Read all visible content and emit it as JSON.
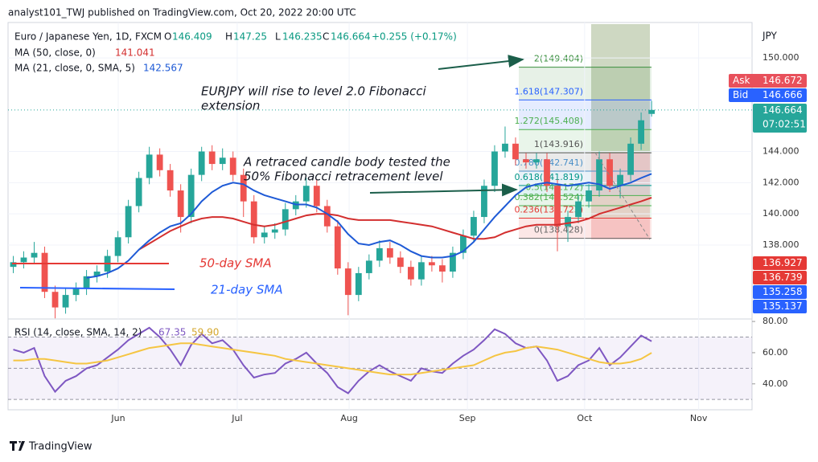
{
  "header": {
    "publisher": "analyst101_TWJ published on TradingView.com, Oct 20, 2022 20:00 UTC",
    "brand": "TradingView"
  },
  "chart_data": {
    "type": "candlestick",
    "title": "Euro / Japanese Yen, 1D, FXCM",
    "ohlc_letters": [
      "O",
      "H",
      "L",
      "C"
    ],
    "change": "+0.255 (+0.17%)",
    "currency": "JPY",
    "x": [
      0,
      1,
      2,
      3,
      4,
      5,
      6,
      7,
      8,
      9,
      10,
      11,
      12,
      13,
      14,
      15,
      16,
      17,
      18,
      19,
      20,
      21,
      22,
      23,
      24,
      25,
      26,
      27,
      28,
      29,
      30,
      31,
      32,
      33,
      34,
      35,
      36,
      37,
      38,
      39,
      40,
      41,
      42,
      43,
      44,
      45,
      46,
      47,
      48,
      49,
      50,
      51,
      52,
      53,
      54,
      55,
      56,
      57,
      58,
      59,
      60,
      61
    ],
    "open": [
      136.6,
      136.9,
      137.2,
      137.5,
      135.0,
      134.0,
      134.8,
      135.2,
      136.0,
      136.3,
      137.3,
      138.5,
      140.5,
      142.3,
      143.8,
      142.8,
      141.5,
      139.8,
      142.5,
      144.0,
      143.2,
      143.6,
      142.5,
      140.8,
      138.5,
      138.8,
      139.0,
      140.3,
      140.8,
      141.8,
      140.5,
      139.2,
      136.5,
      134.8,
      136.2,
      137.0,
      137.8,
      137.2,
      136.6,
      135.8,
      136.9,
      136.7,
      136.3,
      137.5,
      138.6,
      139.8,
      141.8,
      144.0,
      144.5,
      143.5,
      143.3,
      143.5,
      141.8,
      139.2,
      139.8,
      140.8,
      141.5,
      143.5,
      141.8,
      142.5,
      144.5,
      146.409
    ],
    "high": [
      137.3,
      137.6,
      138.2,
      137.9,
      135.4,
      135.2,
      135.6,
      136.4,
      136.7,
      137.7,
      138.9,
      140.9,
      142.7,
      144.3,
      144.2,
      143.2,
      141.9,
      142.9,
      144.3,
      144.4,
      144.2,
      144.0,
      142.9,
      141.2,
      139.2,
      139.4,
      140.7,
      141.2,
      142.3,
      142.2,
      140.9,
      139.6,
      136.9,
      136.6,
      137.4,
      138.3,
      138.2,
      137.6,
      137.0,
      137.3,
      137.3,
      137.1,
      137.9,
      139.0,
      140.2,
      142.2,
      144.4,
      145.6,
      144.9,
      143.9,
      143.9,
      143.9,
      142.2,
      140.2,
      141.2,
      141.9,
      144.0,
      143.9,
      142.9,
      144.9,
      146.5,
      147.25
    ],
    "low": [
      136.2,
      136.5,
      136.8,
      134.6,
      133.3,
      133.6,
      134.4,
      134.8,
      135.6,
      135.9,
      136.9,
      138.1,
      140.1,
      141.9,
      142.4,
      141.1,
      138.8,
      139.4,
      142.1,
      142.8,
      142.8,
      142.1,
      139.8,
      138.1,
      138.1,
      138.4,
      138.6,
      139.9,
      140.4,
      140.1,
      138.8,
      136.1,
      133.5,
      134.4,
      135.8,
      136.6,
      136.8,
      136.2,
      135.4,
      135.4,
      136.3,
      135.6,
      135.9,
      137.1,
      138.2,
      139.4,
      141.4,
      143.6,
      143.1,
      142.9,
      142.9,
      141.4,
      137.6,
      138.2,
      139.4,
      140.4,
      141.1,
      141.4,
      141.0,
      142.1,
      144.1,
      146.235
    ],
    "close": [
      136.9,
      137.2,
      137.5,
      135.0,
      134.0,
      134.8,
      135.2,
      136.0,
      136.3,
      137.3,
      138.5,
      140.5,
      142.3,
      143.8,
      142.8,
      141.5,
      139.8,
      142.5,
      144.0,
      143.2,
      143.6,
      142.5,
      140.8,
      138.5,
      138.8,
      139.0,
      140.3,
      140.8,
      141.8,
      140.5,
      139.2,
      136.5,
      134.8,
      136.2,
      137.0,
      137.8,
      137.2,
      136.6,
      135.8,
      136.9,
      136.7,
      136.3,
      137.5,
      138.6,
      139.8,
      141.8,
      144.0,
      144.5,
      143.5,
      143.3,
      143.5,
      141.8,
      139.2,
      139.8,
      140.8,
      141.5,
      143.5,
      141.8,
      142.5,
      144.5,
      146.0,
      146.664
    ],
    "up_color": "#26a69a",
    "down_color": "#ef5350",
    "xlim": [
      -0.5,
      70.6
    ],
    "xticks": [
      {
        "value": 10.03,
        "label": "Jun"
      },
      {
        "value": 21.4,
        "label": "Jul"
      },
      {
        "value": 32.1,
        "label": "Aug"
      },
      {
        "value": 43.4,
        "label": "Sep"
      },
      {
        "value": 54.6,
        "label": "Oct"
      },
      {
        "value": 65.5,
        "label": "Nov"
      }
    ],
    "ylim": [
      133.26,
      152.27
    ],
    "yticks": [
      {
        "value": 138,
        "label": "138.000"
      },
      {
        "value": 140,
        "label": "140.000"
      },
      {
        "value": 142,
        "label": "142.000"
      },
      {
        "value": 144,
        "label": "144.000"
      },
      {
        "value": 150,
        "label": "150.000"
      }
    ],
    "grid": true,
    "last_price_line": true,
    "series": [
      {
        "name": "MA (50, close, 0)",
        "color": "#d32f2f",
        "values": [
          null,
          null,
          null,
          null,
          null,
          null,
          null,
          null,
          null,
          null,
          null,
          null,
          137.7,
          138.1,
          138.5,
          138.9,
          139.2,
          139.5,
          139.7,
          139.8,
          139.8,
          139.7,
          139.5,
          139.3,
          139.2,
          139.3,
          139.5,
          139.7,
          139.9,
          140.0,
          140.0,
          139.9,
          139.7,
          139.6,
          139.6,
          139.6,
          139.6,
          139.5,
          139.4,
          139.3,
          139.2,
          139.0,
          138.8,
          138.6,
          138.4,
          138.4,
          138.5,
          138.8,
          139.0,
          139.2,
          139.3,
          139.3,
          139.3,
          139.4,
          139.5,
          139.7,
          140.0,
          140.2,
          140.4,
          140.6,
          140.8,
          141.041
        ]
      },
      {
        "name": "MA (21, close, 0, SMA, 5)",
        "color": "#1e5ad6",
        "values": [
          null,
          null,
          null,
          null,
          null,
          null,
          null,
          135.9,
          136.0,
          136.2,
          136.5,
          137.0,
          137.7,
          138.3,
          138.8,
          139.2,
          139.4,
          140.0,
          140.8,
          141.4,
          141.8,
          142.0,
          141.9,
          141.5,
          141.2,
          141.0,
          140.8,
          140.6,
          140.6,
          140.4,
          140.0,
          139.5,
          138.7,
          138.1,
          138.0,
          138.2,
          138.3,
          138.0,
          137.6,
          137.3,
          137.2,
          137.2,
          137.3,
          137.6,
          138.2,
          139.0,
          139.8,
          140.5,
          141.2,
          141.7,
          141.9,
          142.0,
          141.9,
          141.8,
          141.9,
          142.0,
          141.9,
          141.6,
          141.8,
          142.0,
          142.3,
          142.567
        ]
      }
    ],
    "fibonacci": [
      {
        "label": "2(149.404)",
        "price": 149.404,
        "color": "#388e3c"
      },
      {
        "label": "1.618(147.307)",
        "price": 147.307,
        "color": "#2962ff"
      },
      {
        "label": "1.272(145.408)",
        "price": 145.408,
        "color": "#4caf50"
      },
      {
        "label": "1(143.916)",
        "price": 143.916,
        "color": "#555555"
      },
      {
        "label": "0.786(142.741)",
        "price": 142.741,
        "color": "#4a90c8"
      },
      {
        "label": "0.618(141.819)",
        "price": 141.819,
        "color": "#009688"
      },
      {
        "label": "0.5(141.172)",
        "price": 141.172,
        "color": "#4caf50"
      },
      {
        "label": "0.382(140.524)",
        "price": 140.524,
        "color": "#4caf50"
      },
      {
        "label": "0.236(139.723)",
        "price": 139.723,
        "color": "#e53935"
      },
      {
        "label": "0(138.428)",
        "price": 138.428,
        "color": "#666666"
      }
    ],
    "price_tags": [
      {
        "name": "Ask",
        "value": 146.672,
        "color": "#e8505b"
      },
      {
        "name": "Bid",
        "value": 146.666,
        "color": "#2962ff"
      },
      {
        "value": 146.664,
        "timer": "07:02:51",
        "color": "#26a69a"
      },
      {
        "value": 136.927,
        "color": "#e53935"
      },
      {
        "value": 136.739,
        "color": "#e53935"
      },
      {
        "value": 135.258,
        "color": "#2962ff"
      },
      {
        "value": 135.137,
        "color": "#2962ff"
      }
    ],
    "annotations": [
      {
        "lines": [
          "EURJPY will rise to level 2.0 Fibonacci",
          "extension"
        ]
      },
      {
        "lines": [
          "A retraced candle body tested the",
          "50% Fibonacci retracement level"
        ]
      },
      {
        "lines": [
          "50-day SMA"
        ],
        "color": "#e53935"
      },
      {
        "lines": [
          "21-day SMA"
        ],
        "color": "#2962ff"
      }
    ],
    "rsi": {
      "title": "RSI (14, close, SMA, 14, 2)",
      "ylim": [
        23.4,
        81.6
      ],
      "yticks": [
        {
          "value": 40,
          "label": "40.00"
        },
        {
          "value": 60,
          "label": "60.00"
        },
        {
          "value": 80,
          "label": "80.00"
        }
      ],
      "bands": [
        30,
        50,
        70
      ],
      "series": [
        {
          "name": "RSI",
          "color": "#7e57c2",
          "values": [
            62,
            60,
            63,
            45,
            35,
            42,
            45,
            50,
            52,
            57,
            62,
            68,
            72,
            76,
            70,
            62,
            52,
            65,
            72,
            66,
            68,
            62,
            52,
            44,
            46,
            47,
            53,
            56,
            60,
            53,
            47,
            38,
            34,
            42,
            48,
            52,
            48,
            45,
            42,
            50,
            48,
            47,
            53,
            58,
            62,
            68,
            75,
            72,
            66,
            63,
            64,
            55,
            42,
            45,
            52,
            55,
            63,
            52,
            57,
            64,
            71,
            67.35
          ]
        },
        {
          "name": "SMA",
          "color": "#f5c542",
          "values": [
            55,
            55,
            56,
            56,
            55,
            54,
            53,
            53,
            54,
            55,
            57,
            59,
            61,
            63,
            64,
            65,
            66,
            66,
            65,
            64,
            63,
            62,
            61,
            60,
            59,
            58,
            56,
            55,
            54,
            53,
            52,
            51,
            50,
            49,
            48,
            47,
            46,
            46,
            46,
            47,
            48,
            49,
            50,
            51,
            52,
            55,
            58,
            60,
            61,
            63,
            64,
            63,
            62,
            60,
            58,
            56,
            54,
            53,
            53,
            54,
            56,
            59.9
          ]
        }
      ],
      "sma_label": {
        "value": 59.9,
        "label": "59.90"
      }
    }
  }
}
